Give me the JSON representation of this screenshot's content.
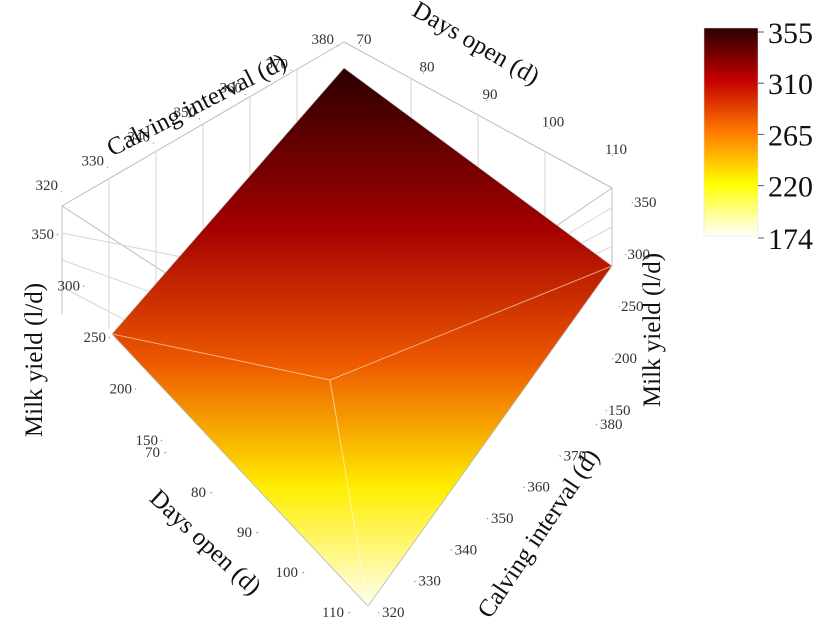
{
  "chart_data": {
    "type": "surface3d",
    "title": "",
    "axes": {
      "calving_interval": {
        "label": "Calving interval (d)",
        "ticks": [
          "320",
          "330",
          "340",
          "350",
          "360",
          "370",
          "380"
        ],
        "range": [
          320,
          380
        ]
      },
      "days_open": {
        "label": "Days open (d)",
        "ticks": [
          "70",
          "80",
          "90",
          "100",
          "110"
        ],
        "range": [
          70,
          110
        ]
      },
      "milk_yield": {
        "label": "Milk yield (l/d)",
        "ticks_left": [
          "150",
          "200",
          "250",
          "300",
          "350"
        ],
        "ticks_right": [
          "150",
          "200",
          "250",
          "300",
          "350"
        ],
        "range": [
          150,
          380
        ]
      }
    },
    "surface_corners": [
      {
        "calving_interval": 380,
        "days_open": 70,
        "milk_yield": 355
      },
      {
        "calving_interval": 320,
        "days_open": 70,
        "milk_yield": 258
      },
      {
        "calving_interval": 380,
        "days_open": 110,
        "milk_yield": 300
      },
      {
        "calving_interval": 320,
        "days_open": 110,
        "milk_yield": 174
      }
    ],
    "colorbar": {
      "ticks": [
        "355",
        "310",
        "265",
        "220",
        "174"
      ],
      "min": 174,
      "max": 355,
      "colors": [
        "#2a0000",
        "#c40000",
        "#ff7a00",
        "#ffff00",
        "#ffffff"
      ]
    }
  }
}
